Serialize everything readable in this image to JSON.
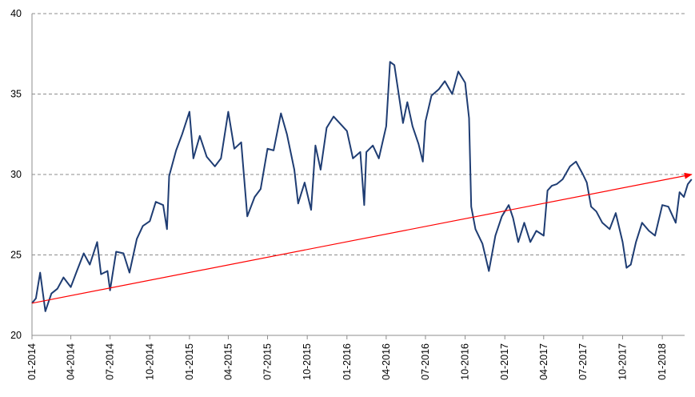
{
  "chart_data": {
    "type": "line",
    "title": "",
    "xlabel": "",
    "ylabel": "",
    "ylim": [
      20,
      40
    ],
    "yticks": [
      "20",
      "25",
      "30",
      "35",
      "40"
    ],
    "grid": "horizontal dashed",
    "legend": "none",
    "x_tick_labels": [
      "01-2014",
      "04-2014",
      "07-2014",
      "10-2014",
      "01-2015",
      "04-2015",
      "07-2015",
      "10-2015",
      "01-2016",
      "04-2016",
      "07-2016",
      "10-2016",
      "01-2017",
      "04-2017",
      "07-2017",
      "10-2017",
      "01-2018"
    ],
    "series": [
      {
        "color": "#1f3d73",
        "points": [
          [
            "2014-01-01",
            22.0
          ],
          [
            "2014-01-10",
            22.3
          ],
          [
            "2014-01-20",
            23.9
          ],
          [
            "2014-02-01",
            21.5
          ],
          [
            "2014-02-15",
            22.6
          ],
          [
            "2014-03-01",
            22.9
          ],
          [
            "2014-03-15",
            23.6
          ],
          [
            "2014-04-01",
            23.0
          ],
          [
            "2014-04-15",
            24.0
          ],
          [
            "2014-05-01",
            25.1
          ],
          [
            "2014-05-15",
            24.4
          ],
          [
            "2014-06-01",
            25.8
          ],
          [
            "2014-06-10",
            23.8
          ],
          [
            "2014-06-25",
            24.0
          ],
          [
            "2014-07-01",
            22.8
          ],
          [
            "2014-07-15",
            25.2
          ],
          [
            "2014-08-01",
            25.1
          ],
          [
            "2014-08-15",
            23.9
          ],
          [
            "2014-09-01",
            26.0
          ],
          [
            "2014-09-15",
            26.8
          ],
          [
            "2014-10-01",
            27.1
          ],
          [
            "2014-10-15",
            28.3
          ],
          [
            "2014-11-01",
            28.1
          ],
          [
            "2014-11-10",
            26.6
          ],
          [
            "2014-11-15",
            29.9
          ],
          [
            "2014-12-01",
            31.5
          ],
          [
            "2014-12-15",
            32.5
          ],
          [
            "2015-01-01",
            33.9
          ],
          [
            "2015-01-10",
            31.0
          ],
          [
            "2015-01-25",
            32.4
          ],
          [
            "2015-02-10",
            31.1
          ],
          [
            "2015-03-01",
            30.5
          ],
          [
            "2015-03-15",
            31.0
          ],
          [
            "2015-04-01",
            33.9
          ],
          [
            "2015-04-15",
            31.6
          ],
          [
            "2015-05-01",
            32.0
          ],
          [
            "2015-05-15",
            27.4
          ],
          [
            "2015-06-01",
            28.6
          ],
          [
            "2015-06-15",
            29.1
          ],
          [
            "2015-07-01",
            31.6
          ],
          [
            "2015-07-15",
            31.5
          ],
          [
            "2015-08-01",
            33.8
          ],
          [
            "2015-08-15",
            32.5
          ],
          [
            "2015-09-01",
            30.3
          ],
          [
            "2015-09-10",
            28.2
          ],
          [
            "2015-09-25",
            29.5
          ],
          [
            "2015-10-10",
            27.8
          ],
          [
            "2015-10-20",
            31.8
          ],
          [
            "2015-11-01",
            30.3
          ],
          [
            "2015-11-15",
            32.9
          ],
          [
            "2015-12-01",
            33.6
          ],
          [
            "2015-12-15",
            33.2
          ],
          [
            "2016-01-01",
            32.7
          ],
          [
            "2016-01-15",
            31.0
          ],
          [
            "2016-02-01",
            31.4
          ],
          [
            "2016-02-10",
            28.1
          ],
          [
            "2016-02-15",
            31.4
          ],
          [
            "2016-03-01",
            31.8
          ],
          [
            "2016-03-15",
            31.0
          ],
          [
            "2016-04-01",
            33.0
          ],
          [
            "2016-04-10",
            37.0
          ],
          [
            "2016-04-20",
            36.8
          ],
          [
            "2016-05-01",
            34.8
          ],
          [
            "2016-05-10",
            33.2
          ],
          [
            "2016-05-20",
            34.5
          ],
          [
            "2016-06-01",
            33.0
          ],
          [
            "2016-06-15",
            31.9
          ],
          [
            "2016-06-25",
            30.8
          ],
          [
            "2016-07-01",
            33.3
          ],
          [
            "2016-07-15",
            34.9
          ],
          [
            "2016-08-01",
            35.3
          ],
          [
            "2016-08-15",
            35.8
          ],
          [
            "2016-09-01",
            35.0
          ],
          [
            "2016-09-15",
            36.4
          ],
          [
            "2016-10-01",
            35.7
          ],
          [
            "2016-10-10",
            33.5
          ],
          [
            "2016-10-15",
            28.0
          ],
          [
            "2016-10-25",
            26.6
          ],
          [
            "2016-11-10",
            25.7
          ],
          [
            "2016-11-25",
            24.0
          ],
          [
            "2016-12-10",
            26.2
          ],
          [
            "2016-12-25",
            27.4
          ],
          [
            "2017-01-10",
            28.1
          ],
          [
            "2017-01-20",
            27.3
          ],
          [
            "2017-02-01",
            25.8
          ],
          [
            "2017-02-15",
            27.0
          ],
          [
            "2017-03-01",
            25.8
          ],
          [
            "2017-03-15",
            26.5
          ],
          [
            "2017-04-01",
            26.2
          ],
          [
            "2017-04-10",
            29.0
          ],
          [
            "2017-04-20",
            29.3
          ],
          [
            "2017-05-01",
            29.4
          ],
          [
            "2017-05-15",
            29.7
          ],
          [
            "2017-06-01",
            30.5
          ],
          [
            "2017-06-15",
            30.8
          ],
          [
            "2017-07-01",
            30.0
          ],
          [
            "2017-07-10",
            29.5
          ],
          [
            "2017-07-20",
            28.0
          ],
          [
            "2017-08-01",
            27.7
          ],
          [
            "2017-08-15",
            27.0
          ],
          [
            "2017-09-01",
            26.6
          ],
          [
            "2017-09-15",
            27.6
          ],
          [
            "2017-10-01",
            25.8
          ],
          [
            "2017-10-10",
            24.2
          ],
          [
            "2017-10-20",
            24.4
          ],
          [
            "2017-11-01",
            25.8
          ],
          [
            "2017-11-15",
            27.0
          ],
          [
            "2017-12-01",
            26.5
          ],
          [
            "2017-12-15",
            26.2
          ],
          [
            "2018-01-01",
            28.1
          ],
          [
            "2018-01-15",
            28.0
          ],
          [
            "2018-02-01",
            27.0
          ],
          [
            "2018-02-10",
            28.9
          ],
          [
            "2018-02-20",
            28.6
          ],
          [
            "2018-03-01",
            29.4
          ],
          [
            "2018-03-10",
            29.7
          ]
        ]
      }
    ],
    "trend_arrow": {
      "color": "#ff0000",
      "from": [
        "2014-01-01",
        22.0
      ],
      "to": [
        "2018-03-10",
        30.0
      ]
    }
  }
}
